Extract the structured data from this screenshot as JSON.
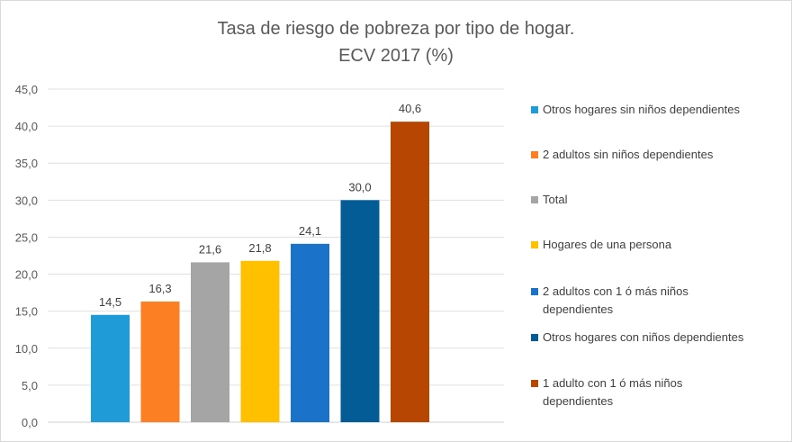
{
  "chart_data": {
    "type": "bar",
    "title_lines": [
      "Tasa de riesgo de pobreza por tipo de hogar.",
      "ECV 2017 (%)"
    ],
    "categories": [
      "Otros hogares sin niños dependientes",
      "2 adultos sin niños dependientes",
      "Total",
      "Hogares de una persona",
      "2 adultos con 1 ó más niños dependientes",
      "Otros hogares con niños dependientes",
      "1 adulto con 1 ó más niños dependientes"
    ],
    "values": [
      14.5,
      16.3,
      21.6,
      21.8,
      24.1,
      30.0,
      40.6
    ],
    "data_labels": [
      "14,5",
      "16,3",
      "21,6",
      "21,8",
      "24,1",
      "30,0",
      "40,6"
    ],
    "colors": [
      "#1f9bd7",
      "#fd7f24",
      "#a5a5a5",
      "#ffc000",
      "#1a73c8",
      "#045c96",
      "#b64602"
    ],
    "ylim": [
      0,
      45
    ],
    "y_ticks": [
      "0,0",
      "5,0",
      "10,0",
      "15,0",
      "20,0",
      "25,0",
      "30,0",
      "35,0",
      "40,0",
      "45,0"
    ],
    "xlabel": "",
    "ylabel": "",
    "grid": true,
    "legend_position": "right"
  }
}
